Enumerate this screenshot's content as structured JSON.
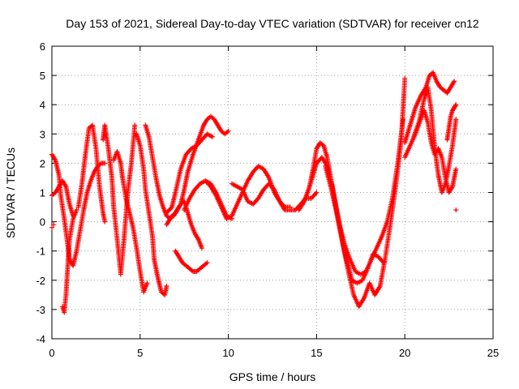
{
  "chart_data": {
    "type": "scatter",
    "title": "Day 153 of 2021, Sidereal Day-to-day VTEC variation (SDTVAR) for receiver cn12",
    "xlabel": "GPS time / hours",
    "ylabel": "SDTVAR / TECUs",
    "xlim": [
      0,
      25
    ],
    "ylim": [
      -4,
      6
    ],
    "xticks": [
      0,
      5,
      10,
      15,
      20,
      25
    ],
    "yticks": [
      -4,
      -3,
      -2,
      -1,
      0,
      1,
      2,
      3,
      4,
      5,
      6
    ],
    "grid": true,
    "marker": "+",
    "series": [
      {
        "name": "SDTVAR",
        "color": "#ff0000",
        "tracks": [
          {
            "x": [
              0.0,
              0.2,
              0.4,
              0.5,
              0.7,
              0.9,
              1.0,
              1.2,
              1.4,
              1.6,
              1.8,
              2.0,
              2.2,
              2.4,
              2.6,
              2.8,
              3.0
            ],
            "y": [
              2.3,
              2.1,
              1.6,
              0.9,
              0.1,
              -0.8,
              -1.3,
              -1.5,
              -1.0,
              -0.3,
              0.4,
              1.0,
              1.4,
              1.7,
              1.9,
              2.0,
              2.0
            ]
          },
          {
            "x": [
              0.0,
              0.2,
              0.4,
              0.6,
              0.8,
              1.0,
              1.2
            ],
            "y": [
              0.9,
              1.0,
              1.2,
              1.4,
              1.2,
              0.6,
              0.2
            ]
          },
          {
            "x": [
              0.6,
              0.7,
              0.8,
              0.9,
              1.0,
              1.2,
              1.4
            ],
            "y": [
              -2.9,
              -3.1,
              -2.5,
              -1.5,
              -0.6,
              0.1,
              0.4
            ]
          },
          {
            "x": [
              1.5,
              1.7,
              1.9,
              2.1,
              2.3,
              2.5,
              2.7,
              2.9,
              3.0
            ],
            "y": [
              0.5,
              1.3,
              2.3,
              3.2,
              3.3,
              2.5,
              1.2,
              0.3,
              0.0
            ]
          },
          {
            "x": [
              2.9,
              3.0,
              3.2,
              3.4,
              3.5,
              3.7,
              3.9,
              4.1,
              4.3,
              4.5,
              4.7
            ],
            "y": [
              2.8,
              3.3,
              2.5,
              1.5,
              0.5,
              -0.6,
              -1.8,
              -0.5,
              1.0,
              2.0,
              3.3
            ]
          },
          {
            "x": [
              3.5,
              3.7,
              3.9,
              4.0,
              4.2,
              4.4,
              4.6,
              4.8,
              5.0,
              5.2,
              5.4
            ],
            "y": [
              2.1,
              2.4,
              2.0,
              1.5,
              0.8,
              0.3,
              -0.2,
              -0.9,
              -1.7,
              -2.4,
              -2.1
            ]
          },
          {
            "x": [
              4.8,
              5.0,
              5.2,
              5.3,
              5.5,
              5.7,
              5.8,
              6.0,
              6.2,
              6.4,
              6.5
            ],
            "y": [
              3.0,
              2.6,
              1.8,
              1.1,
              0.3,
              -0.5,
              -1.3,
              -1.9,
              -2.4,
              -2.5,
              -2.2
            ]
          },
          {
            "x": [
              5.3,
              5.5,
              5.7,
              5.9,
              6.1,
              6.3,
              6.5,
              6.7,
              6.9,
              7.1,
              7.3,
              7.5,
              7.7,
              7.9,
              8.1,
              8.3,
              8.5
            ],
            "y": [
              3.3,
              2.9,
              2.2,
              1.5,
              0.9,
              0.5,
              0.2,
              0.1,
              0.2,
              0.4,
              0.6,
              0.7,
              0.3,
              -0.1,
              -0.4,
              -0.6,
              -0.9
            ]
          },
          {
            "x": [
              6.5,
              6.8,
              7.0,
              7.3,
              7.5,
              7.7,
              8.0,
              8.3,
              8.6,
              8.8,
              9.0,
              9.2,
              9.4,
              9.6,
              9.8,
              10.0
            ],
            "y": [
              -0.1,
              0.2,
              0.3,
              0.6,
              1.1,
              1.7,
              2.3,
              2.8,
              3.3,
              3.5,
              3.6,
              3.5,
              3.3,
              3.1,
              3.0,
              3.1
            ]
          },
          {
            "x": [
              6.5,
              6.8,
              7.0,
              7.3,
              7.6,
              7.9,
              8.2,
              8.5,
              8.8,
              9.1
            ],
            "y": [
              0.3,
              0.5,
              1.0,
              1.8,
              2.3,
              2.5,
              2.6,
              2.8,
              3.0,
              2.9
            ]
          },
          {
            "x": [
              7.0,
              7.2,
              7.4,
              7.6,
              7.8,
              8.0,
              8.2,
              8.4,
              8.6,
              8.8
            ],
            "y": [
              -1.0,
              -1.2,
              -1.4,
              -1.5,
              -1.6,
              -1.7,
              -1.7,
              -1.6,
              -1.5,
              -1.4
            ]
          },
          {
            "x": [
              7.5,
              7.8,
              8.1,
              8.4,
              8.7,
              9.0,
              9.3,
              9.6,
              9.9,
              10.2
            ],
            "y": [
              0.4,
              0.8,
              1.1,
              1.3,
              1.4,
              1.3,
              1.0,
              0.6,
              0.2,
              0.1
            ]
          },
          {
            "x": [
              8.4,
              8.7,
              9.0,
              9.3,
              9.6,
              9.9,
              10.2,
              10.5,
              10.8,
              11.1,
              11.4,
              11.7,
              12.0,
              12.3,
              12.6,
              12.9,
              13.2,
              13.5
            ],
            "y": [
              1.3,
              1.4,
              1.2,
              0.9,
              0.5,
              0.1,
              0.2,
              0.6,
              1.0,
              1.4,
              1.7,
              1.9,
              1.8,
              1.5,
              1.0,
              0.7,
              0.5,
              0.5
            ]
          },
          {
            "x": [
              10.2,
              10.5,
              10.8,
              11.1,
              11.4,
              11.7,
              12.0,
              12.3,
              12.6,
              12.9,
              13.2,
              13.5,
              13.8,
              14.1,
              14.4,
              14.7,
              15.0
            ],
            "y": [
              1.3,
              1.2,
              1.1,
              0.7,
              0.6,
              0.8,
              1.1,
              1.3,
              1.1,
              0.7,
              0.4,
              0.4,
              0.4,
              0.6,
              0.8,
              0.8,
              1.0
            ]
          },
          {
            "x": [
              14.0,
              14.3,
              14.6,
              14.8,
              15.0,
              15.2,
              15.4,
              15.6,
              15.8,
              16.0,
              16.3,
              16.6,
              16.9,
              17.2,
              17.5,
              17.8,
              18.1,
              18.4,
              18.7,
              19.0,
              19.3,
              19.6,
              19.9
            ],
            "y": [
              0.4,
              0.7,
              1.2,
              1.8,
              2.5,
              2.7,
              2.6,
              2.2,
              1.5,
              0.8,
              -0.1,
              -0.8,
              -1.3,
              -1.7,
              -1.8,
              -1.7,
              -1.3,
              -0.9,
              -0.5,
              0.0,
              0.8,
              2.0,
              3.5
            ]
          },
          {
            "x": [
              14.2,
              14.5,
              14.8,
              15.0,
              15.3,
              15.6,
              15.9,
              16.2,
              16.5,
              16.8,
              17.1,
              17.4,
              17.7,
              18.0,
              18.3,
              18.6,
              18.9,
              19.2,
              19.5,
              19.8,
              20.0
            ],
            "y": [
              0.6,
              1.0,
              1.6,
              2.0,
              2.2,
              1.9,
              1.2,
              0.2,
              -0.8,
              -1.7,
              -2.5,
              -2.9,
              -2.6,
              -2.1,
              -2.5,
              -2.2,
              -1.2,
              0.0,
              1.3,
              2.8,
              4.9
            ]
          },
          {
            "x": [
              15.5,
              15.8,
              16.1,
              16.4,
              16.7,
              17.0,
              17.3,
              17.6,
              17.9,
              18.2,
              18.5,
              18.8
            ],
            "y": [
              1.9,
              1.2,
              0.4,
              -0.5,
              -1.3,
              -2.0,
              -2.1,
              -2.0,
              -1.6,
              -1.1,
              -1.2,
              -1.4
            ]
          },
          {
            "x": [
              20.0,
              20.3,
              20.6,
              20.9,
              21.2,
              21.4,
              21.6,
              21.8,
              22.0,
              22.2,
              22.4,
              22.6,
              22.8
            ],
            "y": [
              2.7,
              3.3,
              3.9,
              4.3,
              4.6,
              5.0,
              5.1,
              4.8,
              4.6,
              4.5,
              4.4,
              4.6,
              4.8
            ]
          },
          {
            "x": [
              20.0,
              20.3,
              20.6,
              20.9,
              21.1,
              21.3,
              21.5,
              21.7,
              21.9,
              22.1,
              22.3,
              22.5,
              22.7,
              22.9
            ],
            "y": [
              2.2,
              2.6,
              3.0,
              3.5,
              3.8,
              3.4,
              2.7,
              2.3,
              2.5,
              2.2,
              1.5,
              1.0,
              1.2,
              1.8
            ]
          },
          {
            "x": [
              20.5,
              20.8,
              21.1,
              21.3,
              21.5,
              21.7,
              21.9,
              22.1,
              22.3,
              22.5,
              22.7,
              22.9
            ],
            "y": [
              2.9,
              3.4,
              4.2,
              4.6,
              3.8,
              2.5,
              1.6,
              1.0,
              1.3,
              1.9,
              2.6,
              3.5
            ]
          },
          {
            "x": [
              22.4,
              22.5,
              22.6,
              22.7,
              22.8,
              22.9
            ],
            "y": [
              2.8,
              3.2,
              3.6,
              3.8,
              3.9,
              4.0
            ]
          }
        ]
      }
    ],
    "isolated_points": [
      {
        "x": 0.0,
        "y": -0.2
      },
      {
        "x": 22.9,
        "y": 0.4
      },
      {
        "x": 0.1,
        "y": -0.1
      }
    ]
  }
}
